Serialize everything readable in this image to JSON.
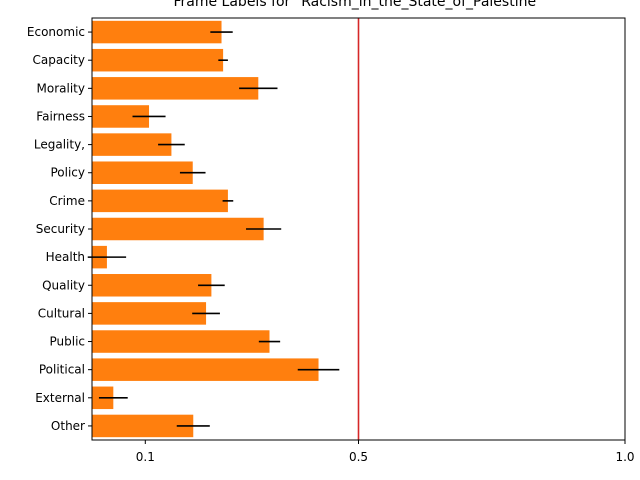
{
  "chart_data": {
    "type": "bar",
    "orientation": "horizontal",
    "title": "Frame Labels for \"Racism_in_the_State_of_Palestine\"",
    "xlabel": "",
    "ylabel": "",
    "categories": [
      "Economic",
      "Capacity",
      "Morality",
      "Fairness",
      "Legality,",
      "Policy",
      "Crime",
      "Security",
      "Health",
      "Quality",
      "Cultural",
      "Public",
      "Political",
      "External",
      "Other"
    ],
    "values": [
      0.243,
      0.246,
      0.312,
      0.107,
      0.149,
      0.189,
      0.255,
      0.322,
      0.028,
      0.224,
      0.214,
      0.333,
      0.425,
      0.04,
      0.19
    ],
    "error": [
      0.021,
      0.009,
      0.036,
      0.031,
      0.025,
      0.024,
      0.01,
      0.033,
      0.036,
      0.025,
      0.026,
      0.02,
      0.039,
      0.027,
      0.031
    ],
    "xlim": [
      0.0,
      1.0
    ],
    "xticks": [
      0.1,
      0.5,
      1.0
    ],
    "xtick_labels": [
      "0.1",
      "0.5",
      "1.0"
    ],
    "reference_line": 0.5,
    "grid": false,
    "colors": {
      "bar": "#ff7f0e",
      "error": "#000000",
      "reference": "#d62728",
      "axis": "#000000"
    }
  }
}
